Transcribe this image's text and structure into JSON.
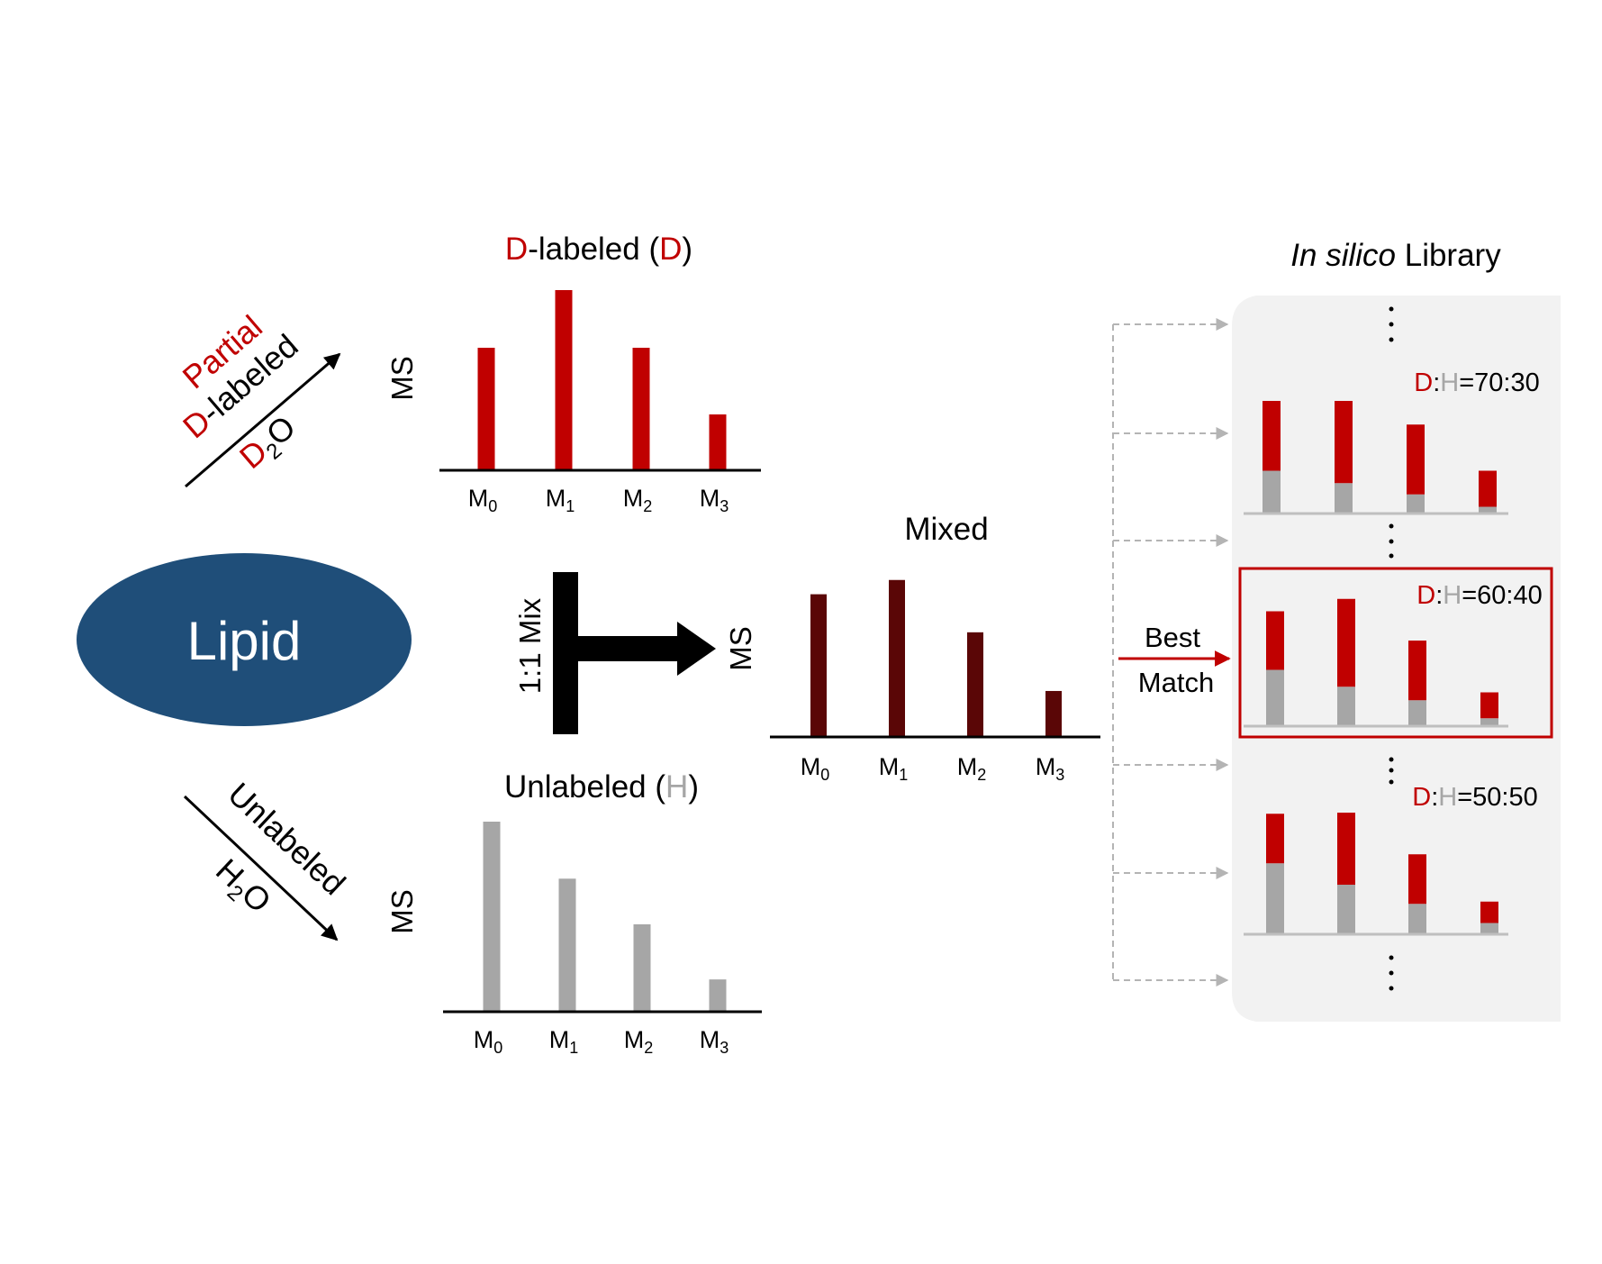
{
  "colors": {
    "red": "#c00000",
    "gray": "#a6a6a6",
    "dark": "#5a0606",
    "lipid": "#1f4e79",
    "black": "#000000",
    "library_bg": "#f2f2f2",
    "dashed": "#b4b4b4"
  },
  "lipid": {
    "label": "Lipid"
  },
  "upper_path": {
    "line1": "Partial",
    "line2": "D-labeled",
    "line3_D": "D",
    "line3_sub": "2",
    "line3_O": "O"
  },
  "lower_path": {
    "line1": "Unlabeled",
    "line2_H": "H",
    "line2_sub": "2",
    "line2_O": "O"
  },
  "mix_label": "1:1 Mix",
  "best_match": {
    "line1": "Best",
    "line2": "Match"
  },
  "library_title": {
    "italic": "In silico",
    "rest": " Library"
  },
  "chart_data": [
    {
      "type": "bar",
      "title_parts": [
        {
          "text": "D",
          "color": "red"
        },
        {
          "text": "-labeled (",
          "color": "black"
        },
        {
          "text": "D",
          "color": "red"
        },
        {
          "text": ")",
          "color": "black"
        }
      ],
      "ylabel": "MS",
      "categories": [
        {
          "base": "M",
          "sub": "0"
        },
        {
          "base": "M",
          "sub": "1"
        },
        {
          "base": "M",
          "sub": "2"
        },
        {
          "base": "M",
          "sub": "3"
        }
      ],
      "values": [
        68,
        100,
        68,
        31
      ],
      "color": "red"
    },
    {
      "type": "bar",
      "title_parts": [
        {
          "text": "Unlabeled (",
          "color": "black"
        },
        {
          "text": "H",
          "color": "gray"
        },
        {
          "text": ")",
          "color": "black"
        }
      ],
      "ylabel": "MS",
      "categories": [
        {
          "base": "M",
          "sub": "0"
        },
        {
          "base": "M",
          "sub": "1"
        },
        {
          "base": "M",
          "sub": "2"
        },
        {
          "base": "M",
          "sub": "3"
        }
      ],
      "values": [
        100,
        70,
        46,
        17
      ],
      "color": "gray"
    },
    {
      "type": "bar",
      "title_parts": [
        {
          "text": "Mixed",
          "color": "black"
        }
      ],
      "ylabel": "MS",
      "categories": [
        {
          "base": "M",
          "sub": "0"
        },
        {
          "base": "M",
          "sub": "1"
        },
        {
          "base": "M",
          "sub": "2"
        },
        {
          "base": "M",
          "sub": "3"
        }
      ],
      "values": [
        90,
        99,
        66,
        29
      ],
      "color": "dark"
    },
    {
      "type": "bar",
      "stacked": true,
      "label": {
        "D": "D",
        "sep": ":",
        "H": "H",
        "ratio": "=70:30"
      },
      "series": [
        {
          "name": "H",
          "values": [
            38,
            27,
            17,
            6
          ]
        },
        {
          "name": "D",
          "values": [
            62,
            73,
            62,
            32
          ]
        }
      ],
      "highlight": false
    },
    {
      "type": "bar",
      "stacked": true,
      "label": {
        "D": "D",
        "sep": ":",
        "H": "H",
        "ratio": "=60:40"
      },
      "series": [
        {
          "name": "H",
          "values": [
            50,
            35,
            23,
            7
          ]
        },
        {
          "name": "D",
          "values": [
            52,
            78,
            53,
            23
          ]
        }
      ],
      "highlight": true
    },
    {
      "type": "bar",
      "stacked": true,
      "label": {
        "D": "D",
        "sep": ":",
        "H": "H",
        "ratio": "=50:50"
      },
      "series": [
        {
          "name": "H",
          "values": [
            63,
            44,
            27,
            10
          ]
        },
        {
          "name": "D",
          "values": [
            44,
            64,
            44,
            19
          ]
        }
      ],
      "highlight": false
    }
  ]
}
